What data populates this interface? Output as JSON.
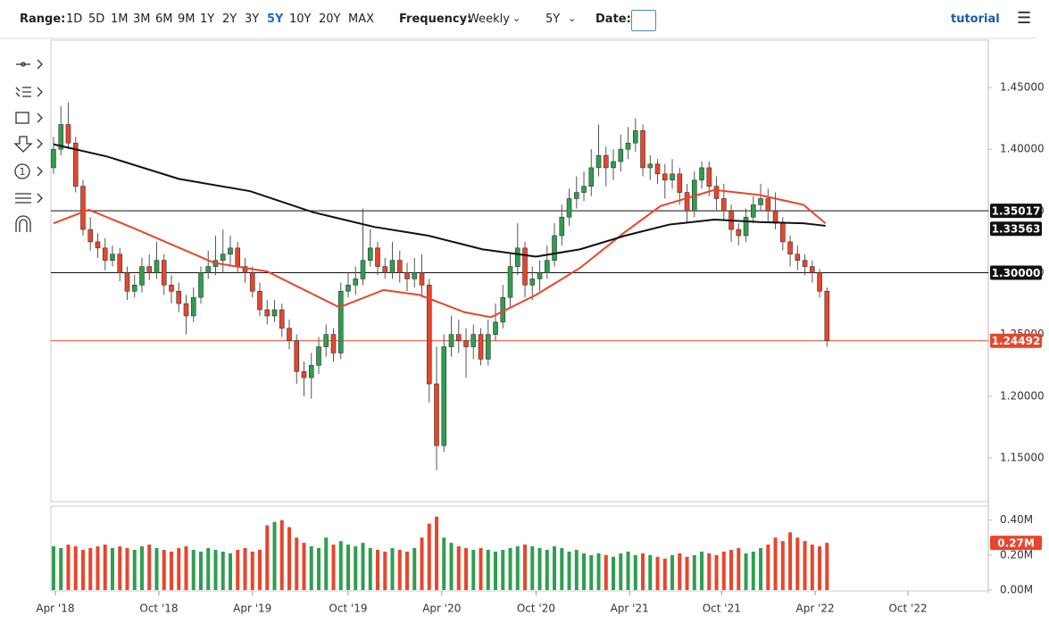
{
  "toolbar": {
    "range_label": "Range:",
    "ranges": [
      "1D",
      "5D",
      "1M",
      "3M",
      "6M",
      "9M",
      "1Y",
      "2Y",
      "3Y",
      "5Y",
      "10Y",
      "20Y",
      "MAX"
    ],
    "active_range": 9,
    "frequency_label": "Frequency:",
    "frequency": "Weekly",
    "period": "5Y",
    "date_label": "Date:",
    "tutorial": "tutorial",
    "counter_icon": "1"
  },
  "chart_data": {
    "type": "candlestick",
    "xlim": [
      -0.36,
      126.9
    ],
    "xticks": [
      {
        "value": 0.24,
        "label": "Apr '18"
      },
      {
        "value": 14.3,
        "label": "Oct '18"
      },
      {
        "value": 27.0,
        "label": "Apr '19"
      },
      {
        "value": 40.0,
        "label": "Oct '19"
      },
      {
        "value": 52.7,
        "label": "Apr '20"
      },
      {
        "value": 65.5,
        "label": "Oct '20"
      },
      {
        "value": 78.2,
        "label": "Apr '21"
      },
      {
        "value": 90.7,
        "label": "Oct '21"
      },
      {
        "value": 103.4,
        "label": "Apr '22"
      },
      {
        "value": 116.0,
        "label": "Oct '22"
      }
    ],
    "ylim": [
      1.1146,
      1.4883
    ],
    "yticks": [
      {
        "value": 1.15,
        "label": "1.15000"
      },
      {
        "value": 1.2,
        "label": "1.20000"
      },
      {
        "value": 1.25,
        "label": "1.25000"
      },
      {
        "value": 1.3,
        "label": "1.30000"
      },
      {
        "value": 1.35,
        "label": "1.35000"
      },
      {
        "value": 1.4,
        "label": "1.40000"
      },
      {
        "value": 1.45,
        "label": "1.45000"
      }
    ],
    "up_color": "#2e9e4f",
    "down_color": "#e8452c",
    "candles": [
      [
        1.385,
        1.41,
        1.38,
        1.4
      ],
      [
        1.4,
        1.435,
        1.395,
        1.42
      ],
      [
        1.42,
        1.438,
        1.4,
        1.405
      ],
      [
        1.405,
        1.41,
        1.365,
        1.37
      ],
      [
        1.37,
        1.375,
        1.33,
        1.335
      ],
      [
        1.335,
        1.345,
        1.318,
        1.325
      ],
      [
        1.325,
        1.332,
        1.312,
        1.32
      ],
      [
        1.32,
        1.328,
        1.302,
        1.31
      ],
      [
        1.31,
        1.322,
        1.305,
        1.315
      ],
      [
        1.315,
        1.32,
        1.293,
        1.3
      ],
      [
        1.3,
        1.305,
        1.278,
        1.285
      ],
      [
        1.285,
        1.298,
        1.28,
        1.29
      ],
      [
        1.29,
        1.312,
        1.284,
        1.305
      ],
      [
        1.305,
        1.315,
        1.294,
        1.3
      ],
      [
        1.3,
        1.325,
        1.295,
        1.31
      ],
      [
        1.31,
        1.315,
        1.282,
        1.29
      ],
      [
        1.29,
        1.298,
        1.275,
        1.285
      ],
      [
        1.285,
        1.292,
        1.268,
        1.275
      ],
      [
        1.275,
        1.282,
        1.25,
        1.265
      ],
      [
        1.265,
        1.288,
        1.26,
        1.28
      ],
      [
        1.28,
        1.305,
        1.275,
        1.3
      ],
      [
        1.3,
        1.318,
        1.295,
        1.305
      ],
      [
        1.305,
        1.33,
        1.298,
        1.31
      ],
      [
        1.31,
        1.335,
        1.3,
        1.315
      ],
      [
        1.315,
        1.33,
        1.305,
        1.32
      ],
      [
        1.32,
        1.325,
        1.3,
        1.305
      ],
      [
        1.305,
        1.312,
        1.292,
        1.3
      ],
      [
        1.3,
        1.305,
        1.28,
        1.285
      ],
      [
        1.285,
        1.292,
        1.265,
        1.27
      ],
      [
        1.27,
        1.278,
        1.258,
        1.265
      ],
      [
        1.265,
        1.278,
        1.26,
        1.27
      ],
      [
        1.27,
        1.275,
        1.248,
        1.255
      ],
      [
        1.255,
        1.262,
        1.238,
        1.245
      ],
      [
        1.245,
        1.25,
        1.21,
        1.22
      ],
      [
        1.22,
        1.228,
        1.2,
        1.215
      ],
      [
        1.215,
        1.235,
        1.198,
        1.225
      ],
      [
        1.225,
        1.248,
        1.218,
        1.24
      ],
      [
        1.24,
        1.258,
        1.232,
        1.25
      ],
      [
        1.25,
        1.255,
        1.228,
        1.235
      ],
      [
        1.235,
        1.292,
        1.23,
        1.285
      ],
      [
        1.285,
        1.3,
        1.28,
        1.29
      ],
      [
        1.29,
        1.305,
        1.282,
        1.295
      ],
      [
        1.295,
        1.352,
        1.29,
        1.31
      ],
      [
        1.31,
        1.335,
        1.305,
        1.32
      ],
      [
        1.32,
        1.325,
        1.298,
        1.305
      ],
      [
        1.305,
        1.312,
        1.295,
        1.3
      ],
      [
        1.3,
        1.325,
        1.295,
        1.31
      ],
      [
        1.31,
        1.318,
        1.292,
        1.3
      ],
      [
        1.3,
        1.308,
        1.285,
        1.295
      ],
      [
        1.295,
        1.312,
        1.288,
        1.3
      ],
      [
        1.3,
        1.315,
        1.28,
        1.29
      ],
      [
        1.29,
        1.295,
        1.195,
        1.21
      ],
      [
        1.21,
        1.24,
        1.14,
        1.16
      ],
      [
        1.16,
        1.25,
        1.155,
        1.24
      ],
      [
        1.24,
        1.265,
        1.232,
        1.25
      ],
      [
        1.25,
        1.262,
        1.235,
        1.245
      ],
      [
        1.245,
        1.255,
        1.215,
        1.24
      ],
      [
        1.24,
        1.258,
        1.23,
        1.25
      ],
      [
        1.25,
        1.255,
        1.225,
        1.23
      ],
      [
        1.23,
        1.262,
        1.225,
        1.25
      ],
      [
        1.25,
        1.275,
        1.245,
        1.26
      ],
      [
        1.26,
        1.29,
        1.255,
        1.28
      ],
      [
        1.28,
        1.315,
        1.272,
        1.305
      ],
      [
        1.305,
        1.34,
        1.298,
        1.32
      ],
      [
        1.32,
        1.325,
        1.28,
        1.29
      ],
      [
        1.29,
        1.305,
        1.278,
        1.295
      ],
      [
        1.295,
        1.31,
        1.285,
        1.3
      ],
      [
        1.3,
        1.322,
        1.295,
        1.31
      ],
      [
        1.31,
        1.34,
        1.305,
        1.33
      ],
      [
        1.33,
        1.355,
        1.322,
        1.345
      ],
      [
        1.345,
        1.368,
        1.338,
        1.36
      ],
      [
        1.36,
        1.378,
        1.352,
        1.365
      ],
      [
        1.365,
        1.382,
        1.358,
        1.37
      ],
      [
        1.37,
        1.4,
        1.362,
        1.385
      ],
      [
        1.385,
        1.42,
        1.378,
        1.395
      ],
      [
        1.395,
        1.402,
        1.37,
        1.385
      ],
      [
        1.385,
        1.4,
        1.375,
        1.39
      ],
      [
        1.39,
        1.412,
        1.382,
        1.4
      ],
      [
        1.4,
        1.418,
        1.392,
        1.405
      ],
      [
        1.405,
        1.425,
        1.398,
        1.415
      ],
      [
        1.415,
        1.42,
        1.378,
        1.385
      ],
      [
        1.385,
        1.395,
        1.375,
        1.388
      ],
      [
        1.388,
        1.392,
        1.372,
        1.38
      ],
      [
        1.38,
        1.388,
        1.36,
        1.375
      ],
      [
        1.375,
        1.392,
        1.368,
        1.38
      ],
      [
        1.38,
        1.385,
        1.355,
        1.365
      ],
      [
        1.365,
        1.372,
        1.34,
        1.35
      ],
      [
        1.35,
        1.382,
        1.345,
        1.375
      ],
      [
        1.375,
        1.39,
        1.368,
        1.385
      ],
      [
        1.385,
        1.39,
        1.362,
        1.37
      ],
      [
        1.37,
        1.378,
        1.35,
        1.36
      ],
      [
        1.36,
        1.372,
        1.342,
        1.35
      ],
      [
        1.35,
        1.355,
        1.325,
        1.335
      ],
      [
        1.335,
        1.34,
        1.322,
        1.33
      ],
      [
        1.33,
        1.352,
        1.325,
        1.345
      ],
      [
        1.345,
        1.362,
        1.34,
        1.355
      ],
      [
        1.355,
        1.372,
        1.35,
        1.36
      ],
      [
        1.36,
        1.368,
        1.34,
        1.35
      ],
      [
        1.35,
        1.365,
        1.335,
        1.34
      ],
      [
        1.34,
        1.345,
        1.318,
        1.325
      ],
      [
        1.325,
        1.33,
        1.305,
        1.315
      ],
      [
        1.315,
        1.322,
        1.302,
        1.31
      ],
      [
        1.31,
        1.315,
        1.298,
        1.305
      ],
      [
        1.305,
        1.31,
        1.292,
        1.3
      ],
      [
        1.3,
        1.303,
        1.28,
        1.285
      ],
      [
        1.285,
        1.288,
        1.24,
        1.24492
      ]
    ],
    "ma_lines": [
      {
        "color": "#e8452c",
        "x": [
          0,
          4.8,
          10.9,
          21.8,
          29,
          38.8,
          44.8,
          49.7,
          55.8,
          59.4,
          65.5,
          71.5,
          77.6,
          82.4,
          89.7,
          95.8,
          101.8,
          104.8
        ],
        "values": [
          1.34,
          1.351,
          1.336,
          1.308,
          1.301,
          1.272,
          1.286,
          1.282,
          1.268,
          1.264,
          1.282,
          1.304,
          1.333,
          1.354,
          1.367,
          1.363,
          1.355,
          1.34
        ]
      },
      {
        "color": "#111111",
        "x": [
          0,
          7.3,
          17,
          26.7,
          35.2,
          43.6,
          50.9,
          58.2,
          65.5,
          71.5,
          77.6,
          83.6,
          89.7,
          95.8,
          101.8,
          104.8
        ],
        "values": [
          1.404,
          1.394,
          1.376,
          1.366,
          1.349,
          1.337,
          1.33,
          1.319,
          1.313,
          1.319,
          1.33,
          1.339,
          1.343,
          1.341,
          1.34,
          1.338
        ],
        "last_label": 1.33563
      }
    ],
    "levels": [
      {
        "value": 1.35017,
        "color": "#111111"
      },
      {
        "value": {
          "value": 1.3,
          "label": "1.30000"
        },
        "color": "#111111"
      },
      {
        "value": 1.24492,
        "color": "#e8452c"
      }
    ],
    "volume": [
      0.25,
      0.24,
      0.26,
      0.25,
      0.23,
      0.24,
      0.25,
      0.26,
      0.24,
      0.25,
      0.24,
      0.23,
      0.25,
      0.26,
      0.24,
      0.23,
      0.22,
      0.24,
      0.25,
      0.23,
      0.22,
      0.24,
      0.23,
      0.22,
      0.21,
      0.23,
      0.24,
      0.22,
      0.23,
      0.37,
      0.39,
      0.4,
      0.36,
      0.3,
      0.27,
      0.25,
      0.24,
      0.3,
      0.26,
      0.28,
      0.26,
      0.25,
      0.27,
      0.24,
      0.23,
      0.22,
      0.24,
      0.23,
      0.22,
      0.24,
      0.3,
      0.38,
      0.42,
      0.3,
      0.27,
      0.25,
      0.24,
      0.23,
      0.24,
      0.23,
      0.22,
      0.23,
      0.24,
      0.25,
      0.26,
      0.25,
      0.24,
      0.23,
      0.25,
      0.24,
      0.22,
      0.23,
      0.21,
      0.2,
      0.21,
      0.2,
      0.19,
      0.21,
      0.22,
      0.2,
      0.21,
      0.2,
      0.19,
      0.18,
      0.2,
      0.21,
      0.19,
      0.2,
      0.22,
      0.21,
      0.2,
      0.22,
      0.23,
      0.24,
      0.21,
      0.22,
      0.24,
      0.26,
      0.3,
      0.28,
      0.33,
      0.3,
      0.28,
      0.26,
      0.25,
      0.27
    ],
    "volume_lim": [
      0,
      0.48
    ],
    "volume_ticks": [
      {
        "value": 0,
        "label": "0.00M"
      },
      {
        "value": 0.2,
        "label": "0.20M"
      },
      {
        "value": 0.4,
        "label": "0.40M"
      }
    ],
    "volume_last": {
      "value": 0.27,
      "label": "0.27M"
    }
  }
}
